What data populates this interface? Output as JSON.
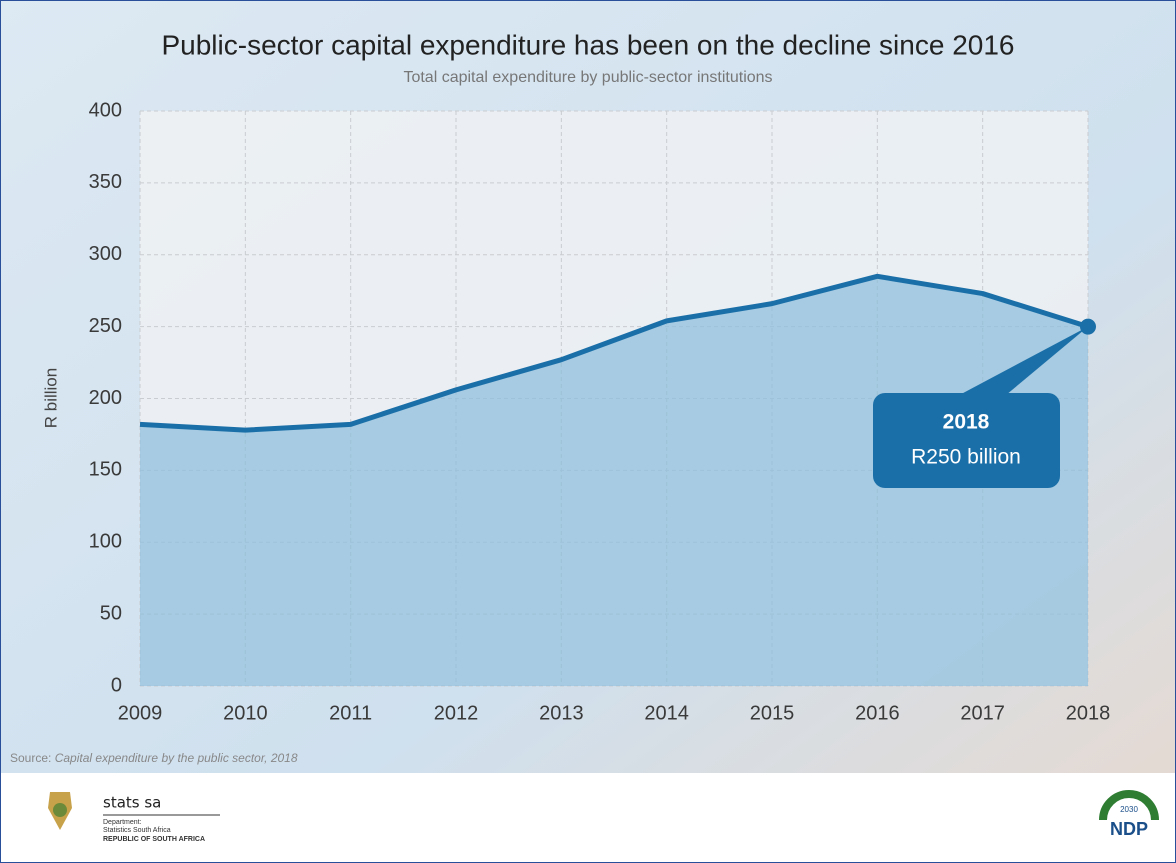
{
  "chart_data": {
    "type": "line",
    "title": "Public-sector capital expenditure has been on the decline since 2016",
    "subtitle": "Total capital expenditure by public-sector institutions",
    "y_label": "R billion",
    "categories": [
      "2009",
      "2010",
      "2011",
      "2012",
      "2013",
      "2014",
      "2015",
      "2016",
      "2017",
      "2018"
    ],
    "series": [
      {
        "name": "Total capital expenditure",
        "color": "#1b6fa8",
        "values": [
          182,
          178,
          182,
          206,
          227,
          254,
          266,
          285,
          273,
          250
        ]
      }
    ],
    "ylim": [
      0,
      400
    ],
    "yticks": [
      0,
      50,
      100,
      150,
      200,
      250,
      300,
      350,
      400
    ],
    "grid": true,
    "annotation": {
      "title": "2018",
      "text": "R250 billion"
    },
    "source": {
      "prefix": "Source:",
      "text": "Capital expenditure by the public sector, 2018"
    }
  },
  "footer": {
    "logo_name": "stats sa",
    "department": "Department:",
    "agency": "Statistics South Africa",
    "country": "REPUBLIC OF SOUTH AFRICA",
    "ndp": "NDP",
    "ndp_year": "2030"
  }
}
